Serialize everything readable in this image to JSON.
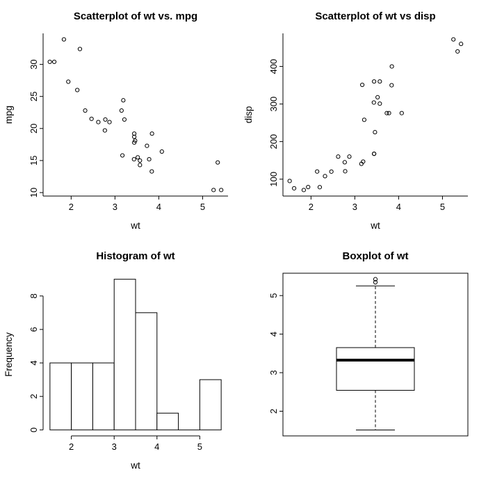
{
  "page": {
    "background": "#ffffff",
    "foreground": "#000000",
    "description": "R base graphics 2x2 plot grid of mtcars weight data"
  },
  "chart_data": [
    {
      "type": "scatter",
      "title": "Scatterplot of wt vs. mpg",
      "xlabel": "wt",
      "ylabel": "mpg",
      "xlim": [
        1.36,
        5.58
      ],
      "ylim": [
        9.46,
        34.84
      ],
      "xticks": [
        2,
        3,
        4,
        5
      ],
      "yticks": [
        10,
        15,
        20,
        25,
        30
      ],
      "point_style": "open-circle",
      "x": [
        2.62,
        2.875,
        2.32,
        3.215,
        3.44,
        3.46,
        3.57,
        3.19,
        3.15,
        3.44,
        3.44,
        4.07,
        3.73,
        3.78,
        5.25,
        5.424,
        5.345,
        2.2,
        1.615,
        1.835,
        2.465,
        3.52,
        3.435,
        3.84,
        3.845,
        1.935,
        2.14,
        1.513,
        3.17,
        2.77,
        3.57,
        2.78
      ],
      "y": [
        21.0,
        21.0,
        22.8,
        21.4,
        18.7,
        18.1,
        14.3,
        24.4,
        22.8,
        19.2,
        17.8,
        16.4,
        17.3,
        15.2,
        10.4,
        10.4,
        14.7,
        32.4,
        30.4,
        33.9,
        21.5,
        15.5,
        15.2,
        13.3,
        19.2,
        27.3,
        26.0,
        30.4,
        15.8,
        19.7,
        15.0,
        21.4
      ]
    },
    {
      "type": "scatter",
      "title": "Scatterplot of wt vs disp",
      "xlabel": "wt",
      "ylabel": "disp",
      "xlim": [
        1.36,
        5.58
      ],
      "ylim": [
        55.06,
        488.04
      ],
      "xticks": [
        2,
        3,
        4,
        5
      ],
      "yticks": [
        100,
        200,
        300,
        400
      ],
      "point_style": "open-circle",
      "x": [
        2.62,
        2.875,
        2.32,
        3.215,
        3.44,
        3.46,
        3.57,
        3.19,
        3.15,
        3.44,
        3.44,
        4.07,
        3.73,
        3.78,
        5.25,
        5.424,
        5.345,
        2.2,
        1.615,
        1.835,
        2.465,
        3.52,
        3.435,
        3.84,
        3.845,
        1.935,
        2.14,
        1.513,
        3.17,
        2.77,
        3.57,
        2.78
      ],
      "y": [
        160,
        160,
        108,
        258,
        360,
        225,
        360,
        146.7,
        140.8,
        167.6,
        167.6,
        275.8,
        275.8,
        275.8,
        472,
        460,
        440,
        78.7,
        75.7,
        71.1,
        120.1,
        318,
        304,
        350,
        400,
        79,
        120.3,
        95.1,
        351,
        145,
        301,
        121
      ]
    },
    {
      "type": "histogram",
      "title": "Histogram of wt",
      "xlabel": "wt",
      "ylabel": "Frequency",
      "xlim": [
        1.34,
        5.66
      ],
      "ylim": [
        -0.36,
        9.36
      ],
      "xticks": [
        2,
        3,
        4,
        5
      ],
      "yticks": [
        0,
        2,
        4,
        6,
        8
      ],
      "bin_edges": [
        1.5,
        2.0,
        2.5,
        3.0,
        3.5,
        4.0,
        4.5,
        5.0,
        5.5
      ],
      "counts": [
        4,
        4,
        4,
        9,
        7,
        1,
        0,
        3
      ],
      "bar_fill": "#ffffff",
      "bar_stroke": "#000000"
    },
    {
      "type": "boxplot",
      "title": "Boxplot of wt",
      "ylim": [
        1.36,
        5.58
      ],
      "yticks": [
        2,
        3,
        4,
        5
      ],
      "stats": {
        "lower_whisker": 1.513,
        "q1": 2.5425,
        "median": 3.325,
        "q3": 3.65,
        "upper_whisker": 5.25
      },
      "outliers": [
        5.345,
        5.424
      ],
      "frame": true
    }
  ]
}
